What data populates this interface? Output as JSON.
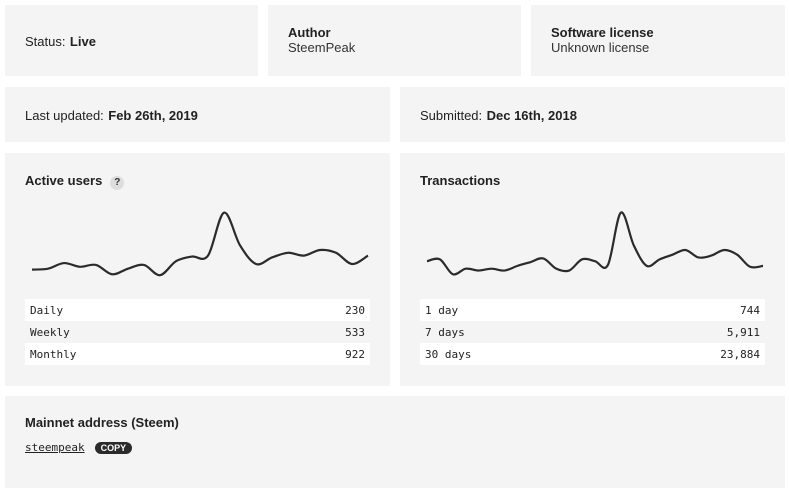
{
  "status": {
    "label": "Status:",
    "value": "Live"
  },
  "author": {
    "label": "Author",
    "value": "SteemPeak"
  },
  "license": {
    "label": "Software license",
    "value": "Unknown license"
  },
  "last_updated": {
    "label": "Last updated:",
    "value": "Feb 26th, 2019"
  },
  "submitted": {
    "label": "Submitted:",
    "value": "Dec 16th, 2018"
  },
  "active_users": {
    "title": "Active users",
    "help": "?",
    "rows": [
      {
        "label": "Daily",
        "value": "230"
      },
      {
        "label": "Weekly",
        "value": "533"
      },
      {
        "label": "Monthly",
        "value": "922"
      }
    ]
  },
  "transactions": {
    "title": "Transactions",
    "rows": [
      {
        "label": "1 day",
        "value": "744"
      },
      {
        "label": "7 days",
        "value": "5,911"
      },
      {
        "label": "30 days",
        "value": "23,884"
      }
    ]
  },
  "mainnet": {
    "title": "Mainnet address (Steem)",
    "address": "steempeak",
    "copy": "COPY"
  },
  "chart_data": [
    {
      "type": "line",
      "title": "Active users",
      "values": [
        9,
        10,
        16,
        12,
        14,
        4,
        10,
        14,
        3,
        18,
        23,
        24,
        70,
        35,
        15,
        22,
        27,
        24,
        30,
        27,
        15,
        24
      ]
    },
    {
      "type": "line",
      "title": "Transactions",
      "values": [
        18,
        20,
        4,
        10,
        8,
        10,
        8,
        13,
        17,
        21,
        10,
        8,
        20,
        18,
        14,
        70,
        35,
        13,
        20,
        25,
        30,
        22,
        24,
        30,
        25,
        12,
        13
      ]
    }
  ]
}
